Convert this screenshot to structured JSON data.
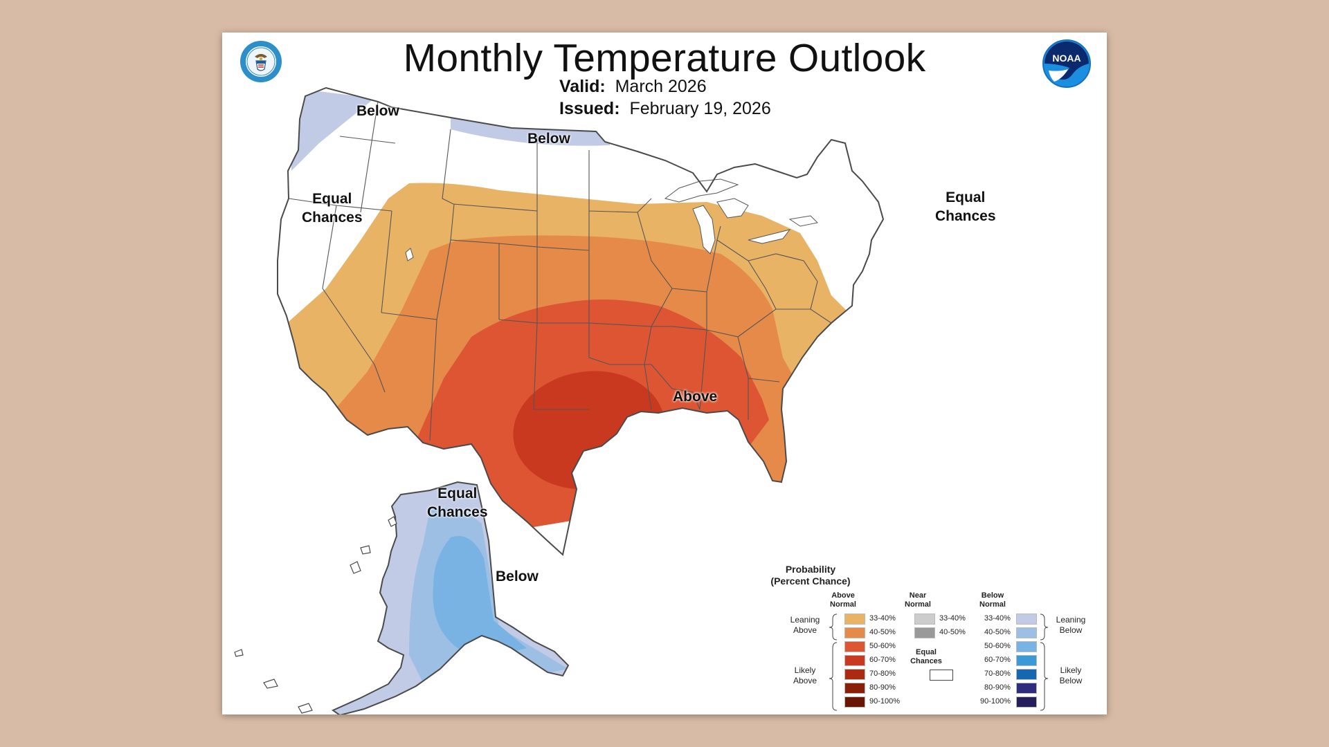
{
  "title": "Monthly Temperature Outlook",
  "valid_label": "Valid:",
  "valid_value": "March 2026",
  "issued_label": "Issued:",
  "issued_value": "February 19, 2026",
  "logos": {
    "left": "doc-seal-icon",
    "right": "noaa-logo-icon"
  },
  "map_labels": {
    "northwest_below": "Below",
    "north_below": "Below",
    "west_equal_1": "Equal",
    "west_equal_2": "Chances",
    "northeast_equal_1": "Equal",
    "northeast_equal_2": "Chances",
    "central_above": "Above",
    "alaska_equal_1": "Equal",
    "alaska_equal_2": "Chances",
    "alaska_below": "Below"
  },
  "colors": {
    "above_33_40": "#e9b366",
    "above_40_50": "#e68a49",
    "above_50_60": "#dd5533",
    "above_60_70": "#c9391f",
    "above_70_80": "#ad2a12",
    "above_80_90": "#8a1e08",
    "above_90_100": "#6b1604",
    "near_33_40": "#cccccc",
    "near_40_50": "#999999",
    "below_33_40": "#c1cbe6",
    "below_40_50": "#9dbfe3",
    "below_50_60": "#79b3e3",
    "below_60_70": "#3a9ad6",
    "below_70_80": "#1568b0",
    "below_80_90": "#2e2c7e",
    "below_90_100": "#241f5a"
  },
  "legend": {
    "title_1": "Probability",
    "title_2": "(Percent Chance)",
    "above_head_1": "Above",
    "above_head_2": "Normal",
    "near_head_1": "Near",
    "near_head_2": "Normal",
    "below_head_1": "Below",
    "below_head_2": "Normal",
    "leaning_above_1": "Leaning",
    "leaning_above_2": "Above",
    "likely_above_1": "Likely",
    "likely_above_2": "Above",
    "leaning_below_1": "Leaning",
    "leaning_below_2": "Below",
    "likely_below_1": "Likely",
    "likely_below_2": "Below",
    "equal_1": "Equal",
    "equal_2": "Chances",
    "above_ranges": [
      "33-40%",
      "40-50%",
      "50-60%",
      "60-70%",
      "70-80%",
      "80-90%",
      "90-100%"
    ],
    "near_ranges": [
      "33-40%",
      "40-50%"
    ],
    "below_ranges": [
      "33-40%",
      "40-50%",
      "50-60%",
      "60-70%",
      "70-80%",
      "80-90%",
      "90-100%"
    ]
  }
}
